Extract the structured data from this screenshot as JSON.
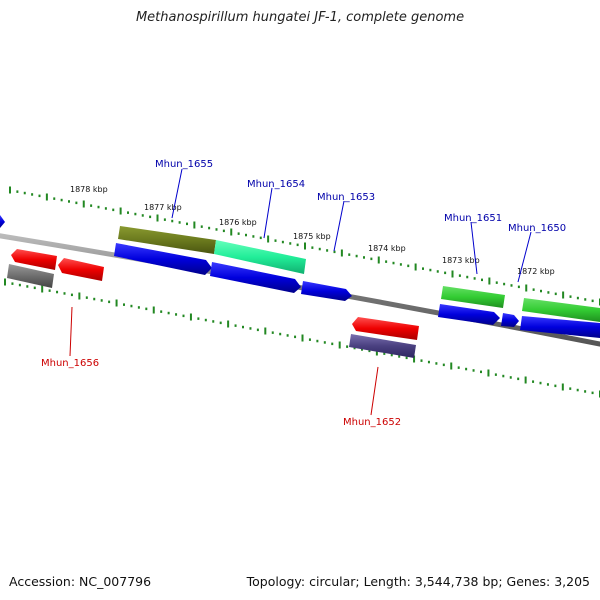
{
  "title": "Methanospirillum hungatei JF-1, complete genome",
  "accession": "Accession: NC_007796",
  "summary": "Topology: circular; Length: 3,544,738 bp; Genes: 3,205",
  "scale_labels": [
    "1878 kbp",
    "1877 kbp",
    "1876 kbp",
    "1875 kbp",
    "1874 kbp",
    "1873 kbp",
    "1872 kbp"
  ],
  "genes": [
    {
      "id": "Mhun_1655",
      "color": "#0000aa"
    },
    {
      "id": "Mhun_1654",
      "color": "#0000aa"
    },
    {
      "id": "Mhun_1653",
      "color": "#0000aa"
    },
    {
      "id": "Mhun_1651",
      "color": "#0000aa"
    },
    {
      "id": "Mhun_1650",
      "color": "#0000aa"
    },
    {
      "id": "Mhun_1656",
      "color": "#cc0000"
    },
    {
      "id": "Mhun_1652",
      "color": "#cc0000"
    }
  ],
  "colors": {
    "forward_cds": "#0000ee",
    "reverse_cds": "#ee0000",
    "tick": "#228822",
    "backbone": "#888888",
    "olive": "#6b7a1e",
    "teal": "#22ee99",
    "green": "#33cc33",
    "gray": "#6e6e6e",
    "slate": "#4a4080"
  }
}
